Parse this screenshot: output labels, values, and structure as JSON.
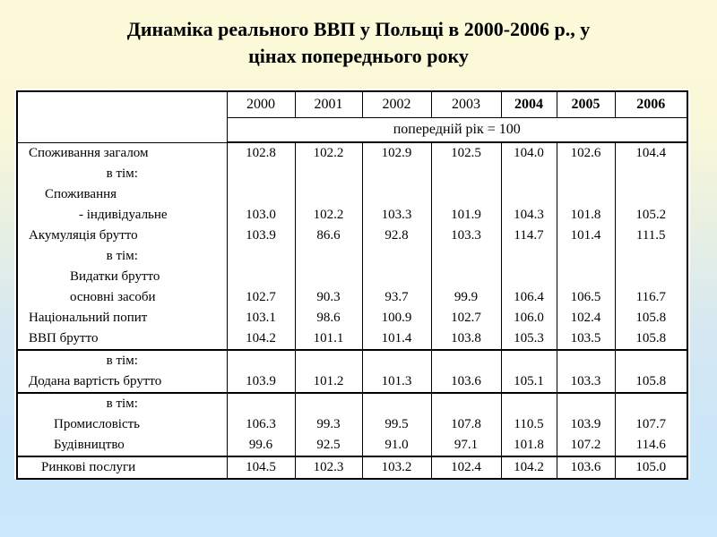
{
  "slide": {
    "title_line1": "Динаміка реального ВВП у Польщі в 2000-2006 р., у",
    "title_line2": "цінах попереднього року",
    "background_top_color": "#FCFAD8",
    "background_bottom_color": "#CAE9FC",
    "panel_color": "#FFFFFF",
    "text_color": "#000000"
  },
  "table": {
    "col_headers": [
      "2000",
      "2001",
      "2002",
      "2003",
      "2004",
      "2005",
      "2006"
    ],
    "subheader": "попередній рік = 100",
    "rows": [
      {
        "label": "Споживання загалом",
        "align": "l",
        "sep": false,
        "values": [
          "102.8",
          "102.2",
          "102.9",
          "102.5",
          "104.0",
          "102.6",
          "104.4"
        ]
      },
      {
        "label": "в тім:",
        "align": "c",
        "sep": false,
        "values": [
          "",
          "",
          "",
          "",
          "",
          "",
          ""
        ]
      },
      {
        "label": "Споживання",
        "align": "i1",
        "sep": false,
        "values": [
          "",
          "",
          "",
          "",
          "",
          "",
          ""
        ]
      },
      {
        "label": "- індивідуальне",
        "align": "i3",
        "sep": false,
        "values": [
          "103.0",
          "102.2",
          "103.3",
          "101.9",
          "104.3",
          "101.8",
          "105.2"
        ]
      },
      {
        "label": "Акумуляція брутто",
        "align": "l",
        "sep": false,
        "values": [
          "103.9",
          "86.6",
          "92.8",
          "103.3",
          "114.7",
          "101.4",
          "111.5"
        ]
      },
      {
        "label": "в тім:",
        "align": "c",
        "sep": false,
        "values": [
          "",
          "",
          "",
          "",
          "",
          "",
          ""
        ]
      },
      {
        "label": "Видатки брутто",
        "align": "i2",
        "sep": false,
        "values": [
          "",
          "",
          "",
          "",
          "",
          "",
          ""
        ]
      },
      {
        "label": "основні засоби",
        "align": "i2",
        "sep": false,
        "values": [
          "102.7",
          "90.3",
          "93.7",
          "99.9",
          "106.4",
          "106.5",
          "116.7"
        ]
      },
      {
        "label": "Національний попит",
        "align": "l",
        "sep": false,
        "values": [
          "103.1",
          "98.6",
          "100.9",
          "102.7",
          "106.0",
          "102.4",
          "105.8"
        ]
      },
      {
        "label": "ВВП брутто",
        "align": "l",
        "sep": false,
        "values": [
          "104.2",
          "101.1",
          "101.4",
          "103.8",
          "105.3",
          "103.5",
          "105.8"
        ]
      },
      {
        "label": "в тім:",
        "align": "c",
        "sep": true,
        "values": [
          "",
          "",
          "",
          "",
          "",
          "",
          ""
        ]
      },
      {
        "label": "Додана вартість брутто",
        "align": "l",
        "sep": false,
        "values": [
          "103.9",
          "101.2",
          "101.3",
          "103.6",
          "105.1",
          "103.3",
          "105.8"
        ]
      },
      {
        "label": "в тім:",
        "align": "c",
        "sep": true,
        "values": [
          "",
          "",
          "",
          "",
          "",
          "",
          ""
        ]
      },
      {
        "label": "Промисловість",
        "align": "i4",
        "sep": false,
        "values": [
          "106.3",
          "99.3",
          "99.5",
          "107.8",
          "110.5",
          "103.9",
          "107.7"
        ]
      },
      {
        "label": "Будівництво",
        "align": "i4",
        "sep": false,
        "values": [
          "99.6",
          "92.5",
          "91.0",
          "97.1",
          "101.8",
          "107.2",
          "114.6"
        ]
      },
      {
        "label": "Ринкові послуги",
        "align": "i5",
        "sep": true,
        "values": [
          "104.5",
          "102.3",
          "103.2",
          "102.4",
          "104.2",
          "103.6",
          "105.0"
        ]
      }
    ]
  }
}
